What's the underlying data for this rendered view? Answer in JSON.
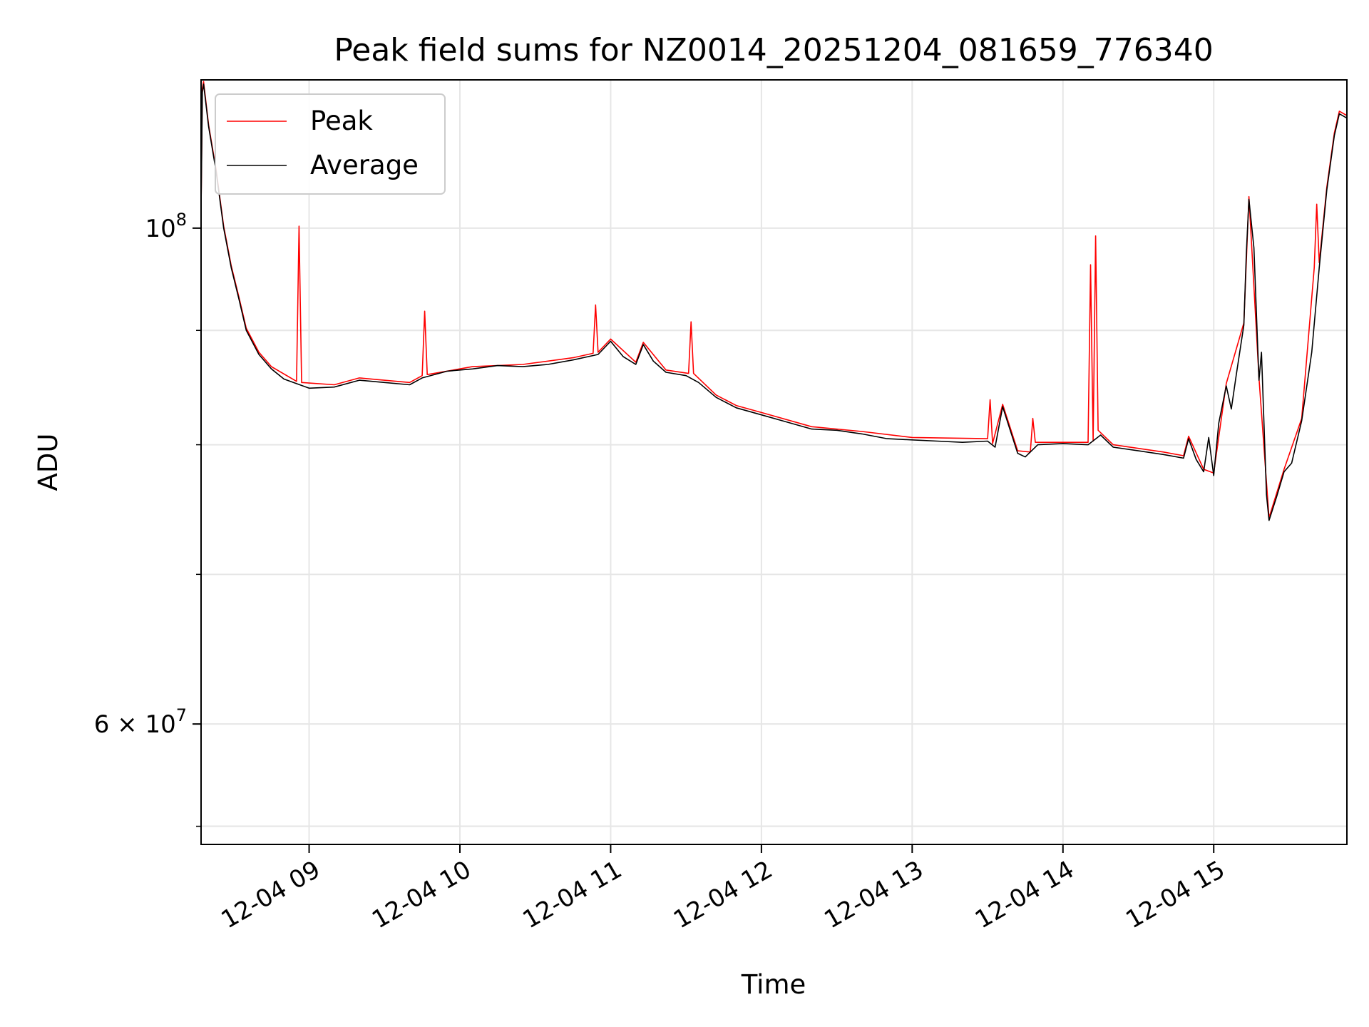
{
  "chart_data": {
    "type": "line",
    "title": "Peak field sums for NZ0014_20251204_081659_776340",
    "xlabel": "Time",
    "ylabel": "ADU",
    "yscale": "log",
    "ylim": [
      53000000,
      116500000
    ],
    "xlim": [
      "2025-12-04 08:17",
      "2025-12-04 15:53"
    ],
    "grid": true,
    "legend_position": "upper left",
    "x_ticks": [
      {
        "t": "2025-12-04 09:00",
        "label": "12-04 09"
      },
      {
        "t": "2025-12-04 10:00",
        "label": "12-04 10"
      },
      {
        "t": "2025-12-04 11:00",
        "label": "12-04 11"
      },
      {
        "t": "2025-12-04 12:00",
        "label": "12-04 12"
      },
      {
        "t": "2025-12-04 13:00",
        "label": "12-04 13"
      },
      {
        "t": "2025-12-04 14:00",
        "label": "12-04 14"
      },
      {
        "t": "2025-12-04 15:00",
        "label": "12-04 15"
      }
    ],
    "y_ticks_major": [
      {
        "v": 100000000,
        "base": "10",
        "exp": "8",
        "prefix": ""
      },
      {
        "v": 60000000,
        "base": "10",
        "exp": "7",
        "prefix": "6 × "
      }
    ],
    "y_ticks_minor": [
      54000000,
      70000000,
      80000000,
      90000000
    ],
    "series": [
      {
        "name": "Average",
        "color": "#000000",
        "points": [
          [
            "2025-12-04 08:17",
            102000000
          ],
          [
            "2025-12-04 08:17:30",
            115000000
          ],
          [
            "2025-12-04 08:18",
            116000000
          ],
          [
            "2025-12-04 08:20",
            111000000
          ],
          [
            "2025-12-04 08:23",
            106000000
          ],
          [
            "2025-12-04 08:26",
            100000000
          ],
          [
            "2025-12-04 08:29",
            96000000
          ],
          [
            "2025-12-04 08:32",
            93000000
          ],
          [
            "2025-12-04 08:35",
            90000000
          ],
          [
            "2025-12-04 08:40",
            87800000
          ],
          [
            "2025-12-04 08:45",
            86500000
          ],
          [
            "2025-12-04 08:50",
            85600000
          ],
          [
            "2025-12-04 08:55",
            85200000
          ],
          [
            "2025-12-04 09:00",
            84800000
          ],
          [
            "2025-12-04 09:10",
            84900000
          ],
          [
            "2025-12-04 09:20",
            85500000
          ],
          [
            "2025-12-04 09:30",
            85300000
          ],
          [
            "2025-12-04 09:40",
            85100000
          ],
          [
            "2025-12-04 09:45",
            85700000
          ],
          [
            "2025-12-04 09:55",
            86300000
          ],
          [
            "2025-12-04 10:05",
            86500000
          ],
          [
            "2025-12-04 10:15",
            86800000
          ],
          [
            "2025-12-04 10:25",
            86700000
          ],
          [
            "2025-12-04 10:35",
            86900000
          ],
          [
            "2025-12-04 10:45",
            87300000
          ],
          [
            "2025-12-04 10:55",
            87800000
          ],
          [
            "2025-12-04 11:00",
            89000000
          ],
          [
            "2025-12-04 11:05",
            87600000
          ],
          [
            "2025-12-04 11:10",
            86900000
          ],
          [
            "2025-12-04 11:13",
            88700000
          ],
          [
            "2025-12-04 11:17",
            87200000
          ],
          [
            "2025-12-04 11:22",
            86200000
          ],
          [
            "2025-12-04 11:30",
            85900000
          ],
          [
            "2025-12-04 11:35",
            85300000
          ],
          [
            "2025-12-04 11:42",
            84000000
          ],
          [
            "2025-12-04 11:50",
            83100000
          ],
          [
            "2025-12-04 12:00",
            82500000
          ],
          [
            "2025-12-04 12:10",
            81900000
          ],
          [
            "2025-12-04 12:20",
            81300000
          ],
          [
            "2025-12-04 12:30",
            81200000
          ],
          [
            "2025-12-04 12:40",
            80900000
          ],
          [
            "2025-12-04 12:50",
            80500000
          ],
          [
            "2025-12-04 13:00",
            80400000
          ],
          [
            "2025-12-04 13:10",
            80300000
          ],
          [
            "2025-12-04 13:20",
            80200000
          ],
          [
            "2025-12-04 13:30",
            80300000
          ],
          [
            "2025-12-04 13:33",
            79800000
          ],
          [
            "2025-12-04 13:36",
            83200000
          ],
          [
            "2025-12-04 13:39",
            81200000
          ],
          [
            "2025-12-04 13:42",
            79300000
          ],
          [
            "2025-12-04 13:45",
            79000000
          ],
          [
            "2025-12-04 13:50",
            80000000
          ],
          [
            "2025-12-04 14:00",
            80100000
          ],
          [
            "2025-12-04 14:10",
            80000000
          ],
          [
            "2025-12-04 14:15",
            80800000
          ],
          [
            "2025-12-04 14:20",
            79800000
          ],
          [
            "2025-12-04 14:30",
            79500000
          ],
          [
            "2025-12-04 14:40",
            79200000
          ],
          [
            "2025-12-04 14:48",
            78900000
          ],
          [
            "2025-12-04 14:50",
            80500000
          ],
          [
            "2025-12-04 14:53",
            78800000
          ],
          [
            "2025-12-04 14:56",
            77800000
          ],
          [
            "2025-12-04 14:58",
            80600000
          ],
          [
            "2025-12-04 15:00",
            77500000
          ],
          [
            "2025-12-04 15:02",
            81800000
          ],
          [
            "2025-12-04 15:05",
            85000000
          ],
          [
            "2025-12-04 15:07",
            83000000
          ],
          [
            "2025-12-04 15:09",
            86000000
          ],
          [
            "2025-12-04 15:12",
            90500000
          ],
          [
            "2025-12-04 15:13",
            97500000
          ],
          [
            "2025-12-04 15:14",
            103000000
          ],
          [
            "2025-12-04 15:16",
            98000000
          ],
          [
            "2025-12-04 15:18",
            85500000
          ],
          [
            "2025-12-04 15:19",
            88000000
          ],
          [
            "2025-12-04 15:21",
            76000000
          ],
          [
            "2025-12-04 15:22",
            74000000
          ],
          [
            "2025-12-04 15:25",
            75800000
          ],
          [
            "2025-12-04 15:28",
            77800000
          ],
          [
            "2025-12-04 15:31",
            78500000
          ],
          [
            "2025-12-04 15:35",
            82000000
          ],
          [
            "2025-12-04 15:39",
            88000000
          ],
          [
            "2025-12-04 15:42",
            96000000
          ],
          [
            "2025-12-04 15:45",
            104000000
          ],
          [
            "2025-12-04 15:48",
            110000000
          ],
          [
            "2025-12-04 15:50",
            112500000
          ],
          [
            "2025-12-04 15:53",
            112000000
          ]
        ]
      },
      {
        "name": "Peak",
        "color": "#ff0000",
        "points": [
          [
            "2025-12-04 08:17",
            102000000
          ],
          [
            "2025-12-04 08:17:30",
            115500000
          ],
          [
            "2025-12-04 08:18",
            116300000
          ],
          [
            "2025-12-04 08:20",
            111200000
          ],
          [
            "2025-12-04 08:23",
            106200000
          ],
          [
            "2025-12-04 08:26",
            100200000
          ],
          [
            "2025-12-04 08:29",
            96200000
          ],
          [
            "2025-12-04 08:32",
            93200000
          ],
          [
            "2025-12-04 08:35",
            90200000
          ],
          [
            "2025-12-04 08:40",
            88000000
          ],
          [
            "2025-12-04 08:45",
            86700000
          ],
          [
            "2025-12-04 08:55",
            85400000
          ],
          [
            "2025-12-04 08:56",
            100200000
          ],
          [
            "2025-12-04 08:57",
            85300000
          ],
          [
            "2025-12-04 09:10",
            85100000
          ],
          [
            "2025-12-04 09:20",
            85700000
          ],
          [
            "2025-12-04 09:40",
            85300000
          ],
          [
            "2025-12-04 09:45",
            85900000
          ],
          [
            "2025-12-04 09:46",
            91800000
          ],
          [
            "2025-12-04 09:47",
            86000000
          ],
          [
            "2025-12-04 10:05",
            86700000
          ],
          [
            "2025-12-04 10:25",
            86900000
          ],
          [
            "2025-12-04 10:45",
            87500000
          ],
          [
            "2025-12-04 10:53",
            87900000
          ],
          [
            "2025-12-04 10:54",
            92400000
          ],
          [
            "2025-12-04 10:55",
            88000000
          ],
          [
            "2025-12-04 11:00",
            89200000
          ],
          [
            "2025-12-04 11:10",
            87100000
          ],
          [
            "2025-12-04 11:13",
            88900000
          ],
          [
            "2025-12-04 11:22",
            86400000
          ],
          [
            "2025-12-04 11:31",
            86100000
          ],
          [
            "2025-12-04 11:32",
            90800000
          ],
          [
            "2025-12-04 11:33",
            86100000
          ],
          [
            "2025-12-04 11:42",
            84200000
          ],
          [
            "2025-12-04 11:50",
            83300000
          ],
          [
            "2025-12-04 12:00",
            82700000
          ],
          [
            "2025-12-04 12:20",
            81500000
          ],
          [
            "2025-12-04 12:40",
            81100000
          ],
          [
            "2025-12-04 13:00",
            80600000
          ],
          [
            "2025-12-04 13:30",
            80500000
          ],
          [
            "2025-12-04 13:31",
            83800000
          ],
          [
            "2025-12-04 13:32",
            80100000
          ],
          [
            "2025-12-04 13:36",
            83400000
          ],
          [
            "2025-12-04 13:42",
            79500000
          ],
          [
            "2025-12-04 13:47",
            79400000
          ],
          [
            "2025-12-04 13:48",
            82200000
          ],
          [
            "2025-12-04 13:49",
            80200000
          ],
          [
            "2025-12-04 14:10",
            80200000
          ],
          [
            "2025-12-04 14:11",
            96300000
          ],
          [
            "2025-12-04 14:12",
            80300000
          ],
          [
            "2025-12-04 14:13",
            99200000
          ],
          [
            "2025-12-04 14:14",
            81200000
          ],
          [
            "2025-12-04 14:20",
            80000000
          ],
          [
            "2025-12-04 14:40",
            79400000
          ],
          [
            "2025-12-04 14:48",
            79100000
          ],
          [
            "2025-12-04 14:50",
            80700000
          ],
          [
            "2025-12-04 14:56",
            78000000
          ],
          [
            "2025-12-04 15:00",
            77700000
          ],
          [
            "2025-12-04 15:05",
            85200000
          ],
          [
            "2025-12-04 15:12",
            90700000
          ],
          [
            "2025-12-04 15:14",
            103300000
          ],
          [
            "2025-12-04 15:18",
            85700000
          ],
          [
            "2025-12-04 15:22",
            74200000
          ],
          [
            "2025-12-04 15:28",
            78000000
          ],
          [
            "2025-12-04 15:35",
            82200000
          ],
          [
            "2025-12-04 15:40",
            96000000
          ],
          [
            "2025-12-04 15:41",
            102500000
          ],
          [
            "2025-12-04 15:42",
            96500000
          ],
          [
            "2025-12-04 15:45",
            104300000
          ],
          [
            "2025-12-04 15:48",
            110300000
          ],
          [
            "2025-12-04 15:50",
            112800000
          ],
          [
            "2025-12-04 15:53",
            112300000
          ]
        ]
      }
    ]
  }
}
